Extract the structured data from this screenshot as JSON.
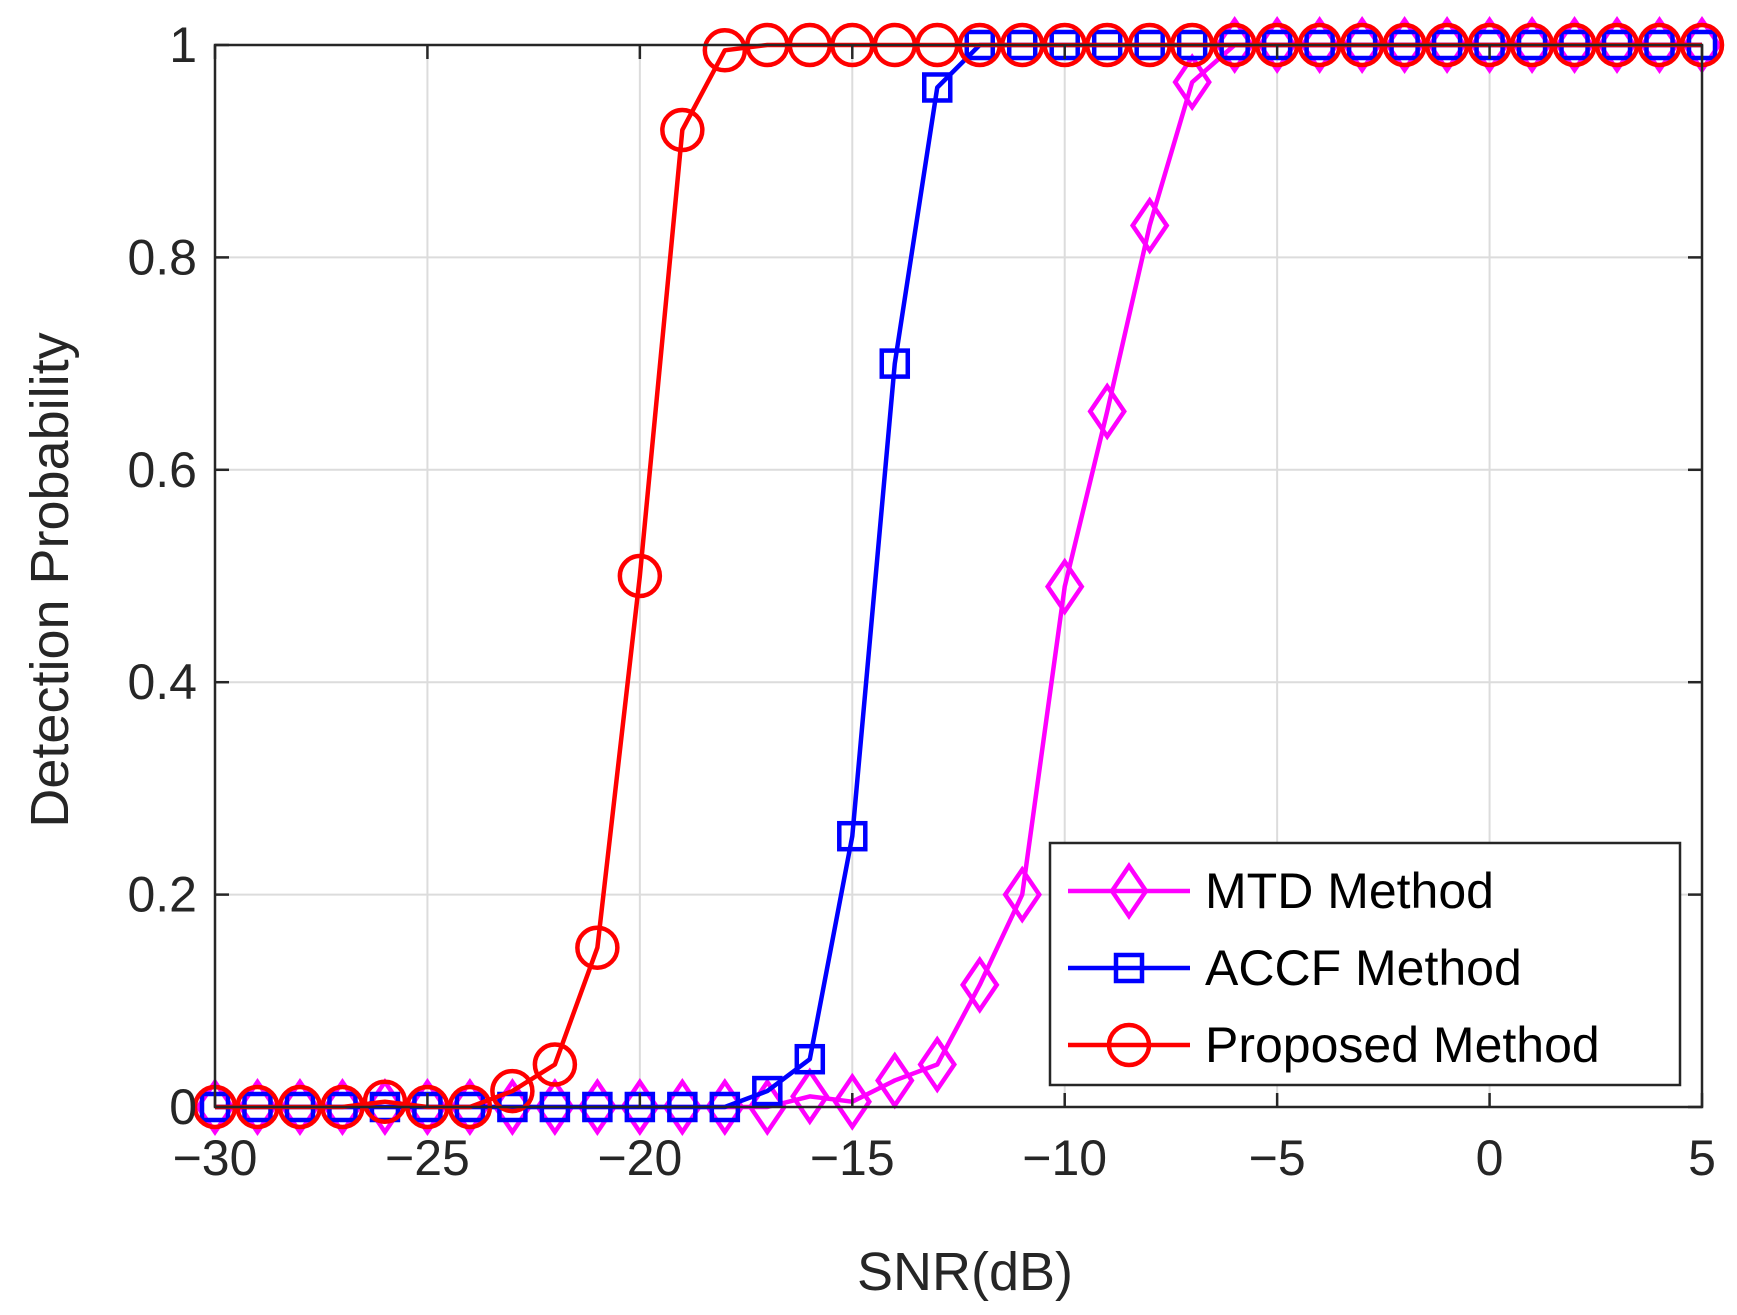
{
  "chart_data": {
    "type": "line",
    "title": "",
    "xlabel": "SNR(dB)",
    "ylabel": "Detection Probability",
    "xlim": [
      -30,
      5
    ],
    "ylim": [
      0,
      1
    ],
    "xticks": [
      -30,
      -25,
      -20,
      -15,
      -10,
      -5,
      0,
      5
    ],
    "xtick_labels": [
      "−30",
      "−25",
      "−20",
      "−15",
      "−10",
      "−5",
      "0",
      "5"
    ],
    "yticks": [
      0,
      0.2,
      0.4,
      0.6,
      0.8,
      1
    ],
    "ytick_labels": [
      "0",
      "0.2",
      "0.4",
      "0.6",
      "0.8",
      "1"
    ],
    "grid": true,
    "legend_position": "bottom-right",
    "x": [
      -30,
      -29,
      -28,
      -27,
      -26,
      -25,
      -24,
      -23,
      -22,
      -21,
      -20,
      -19,
      -18,
      -17,
      -16,
      -15,
      -14,
      -13,
      -12,
      -11,
      -10,
      -9,
      -8,
      -7,
      -6,
      -5,
      -4,
      -3,
      -2,
      -1,
      0,
      1,
      2,
      3,
      4,
      5
    ],
    "series": [
      {
        "name": "MTD Method",
        "color": "#ff00ff",
        "marker": "diamond",
        "values": [
          0,
          0,
          0,
          0,
          0,
          0,
          0,
          0,
          0,
          0,
          0,
          0,
          0,
          0,
          0.01,
          0.005,
          0.025,
          0.04,
          0.115,
          0.2,
          0.49,
          0.655,
          0.83,
          0.965,
          1,
          1,
          1,
          1,
          1,
          1,
          1,
          1,
          1,
          1,
          1,
          1
        ]
      },
      {
        "name": "ACCF Method",
        "color": "#0000ff",
        "marker": "square",
        "values": [
          0,
          0,
          0,
          0,
          0,
          0,
          0,
          0,
          0,
          0,
          0,
          0,
          0,
          0.015,
          0.045,
          0.255,
          0.7,
          0.96,
          1,
          1,
          1,
          1,
          1,
          1,
          1,
          1,
          1,
          1,
          1,
          1,
          1,
          1,
          1,
          1,
          1,
          1
        ]
      },
      {
        "name": "Proposed Method",
        "color": "#ff0000",
        "marker": "circle",
        "values": [
          0,
          0,
          0,
          0,
          0.005,
          0,
          0,
          0.015,
          0.04,
          0.15,
          0.5,
          0.92,
          0.995,
          1,
          1,
          1,
          1,
          1,
          1,
          1,
          1,
          1,
          1,
          1,
          1,
          1,
          1,
          1,
          1,
          1,
          1,
          1,
          1,
          1,
          1,
          1
        ]
      }
    ]
  }
}
